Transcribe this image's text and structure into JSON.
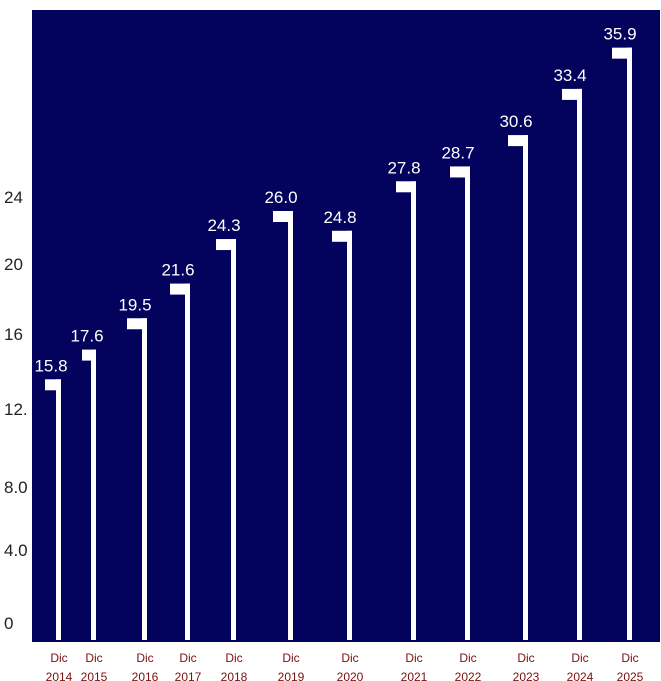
{
  "chart_data": {
    "type": "bar",
    "categories": [
      [
        "Dic",
        "2014"
      ],
      [
        "Dic",
        "2015"
      ],
      [
        "Dic",
        "2016"
      ],
      [
        "Dic",
        "2017"
      ],
      [
        "Dic",
        "2018"
      ],
      [
        "Dic",
        "2019"
      ],
      [
        "Dic",
        "2020"
      ],
      [
        "Dic",
        "2021"
      ],
      [
        "Dic",
        "2022"
      ],
      [
        "Dic",
        "2023"
      ],
      [
        "Dic",
        "2024"
      ],
      [
        "Dic",
        "2025"
      ]
    ],
    "values": [
      15.8,
      17.6,
      19.5,
      21.6,
      24.3,
      26.0,
      24.8,
      27.8,
      28.7,
      30.6,
      33.4,
      35.9
    ],
    "value_labels": [
      "15.8",
      "17.6",
      "19.5",
      "21.6",
      "24.3",
      "26.0",
      "24.8",
      "27.8",
      "28.7",
      "30.6",
      "33.4",
      "35.9"
    ],
    "y_ticks": [
      0,
      4,
      8,
      12,
      16,
      20,
      24
    ],
    "y_tick_labels": [
      "0",
      "4.0",
      "8.0",
      "12.",
      "16",
      "20",
      "24"
    ],
    "ylim": [
      0,
      37
    ],
    "title": "",
    "xlabel": "",
    "ylabel": "",
    "grid": false,
    "colors": {
      "plot_background": "#03025c",
      "bar": "#ffffff",
      "value_label": "#ffffff",
      "x_label": "#7a1010",
      "y_label": "#222222"
    }
  }
}
